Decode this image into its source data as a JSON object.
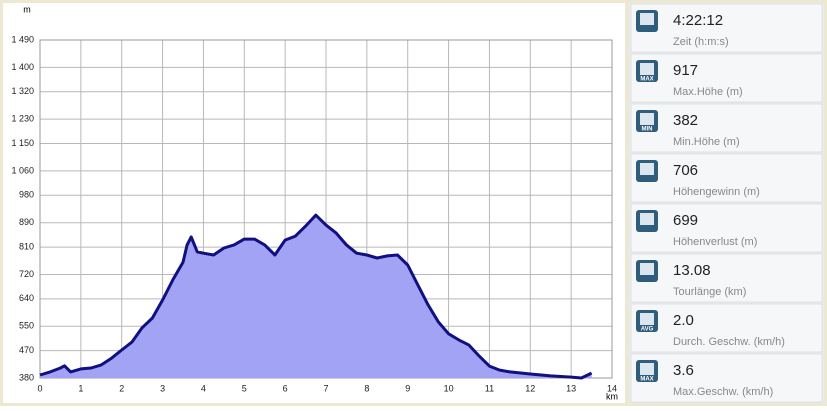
{
  "chart_data": {
    "type": "area",
    "y_unit": "m",
    "x_unit": "km",
    "x": [
      0,
      0.25,
      0.5,
      0.6,
      0.75,
      1.0,
      1.25,
      1.5,
      1.75,
      2.0,
      2.25,
      2.5,
      2.75,
      3.0,
      3.25,
      3.5,
      3.6,
      3.7,
      3.85,
      4.0,
      4.25,
      4.5,
      4.75,
      5.0,
      5.25,
      5.5,
      5.75,
      6.0,
      6.25,
      6.5,
      6.75,
      7.0,
      7.25,
      7.5,
      7.75,
      8.0,
      8.25,
      8.5,
      8.75,
      9.0,
      9.25,
      9.5,
      9.75,
      10.0,
      10.25,
      10.5,
      10.75,
      11.0,
      11.25,
      11.5,
      12.0,
      12.5,
      13.0,
      13.25,
      13.5
    ],
    "values": [
      390,
      400,
      413,
      420,
      400,
      410,
      413,
      423,
      445,
      472,
      498,
      545,
      577,
      636,
      702,
      760,
      817,
      843,
      794,
      790,
      784,
      807,
      817,
      836,
      836,
      817,
      784,
      833,
      846,
      879,
      915,
      882,
      856,
      817,
      790,
      784,
      774,
      781,
      784,
      751,
      685,
      620,
      564,
      525,
      505,
      488,
      452,
      419,
      406,
      400,
      393,
      387,
      383,
      380,
      396
    ],
    "fill_color": "#a3a3f5",
    "line_color": "#101080",
    "xlim": [
      0,
      14
    ],
    "xticks": [
      0,
      1,
      2,
      3,
      4,
      5,
      6,
      7,
      8,
      9,
      10,
      11,
      12,
      13,
      14
    ],
    "ylim": [
      380,
      1490
    ],
    "yticks": [
      380,
      470,
      550,
      640,
      720,
      810,
      890,
      980,
      {
        "value": 1060,
        "label": "1 060"
      },
      {
        "value": 1150,
        "label": "1 150"
      },
      {
        "value": 1230,
        "label": "1 230"
      },
      {
        "value": 1320,
        "label": "1 320"
      },
      {
        "value": 1400,
        "label": "1 400"
      },
      {
        "value": 1490,
        "label": "1 490"
      }
    ],
    "grid": true
  },
  "stats": [
    {
      "value": "4:22:12",
      "label": "Zeit (h:m:s)"
    },
    {
      "value": "917",
      "label": "Max.Höhe (m)",
      "icon": "MAX"
    },
    {
      "value": "382",
      "label": "Min.Höhe (m)",
      "icon": "MIN"
    },
    {
      "value": "706",
      "label": "Höhengewinn (m)"
    },
    {
      "value": "699",
      "label": "Höhenverlust (m)"
    },
    {
      "value": "13.08",
      "label": "Tourlänge (km)"
    },
    {
      "value": "2.0",
      "label": "Durch. Geschw. (km/h)",
      "icon": "AVG"
    },
    {
      "value": "3.6",
      "label": "Max.Geschw. (km/h)",
      "icon": "MAX"
    }
  ]
}
